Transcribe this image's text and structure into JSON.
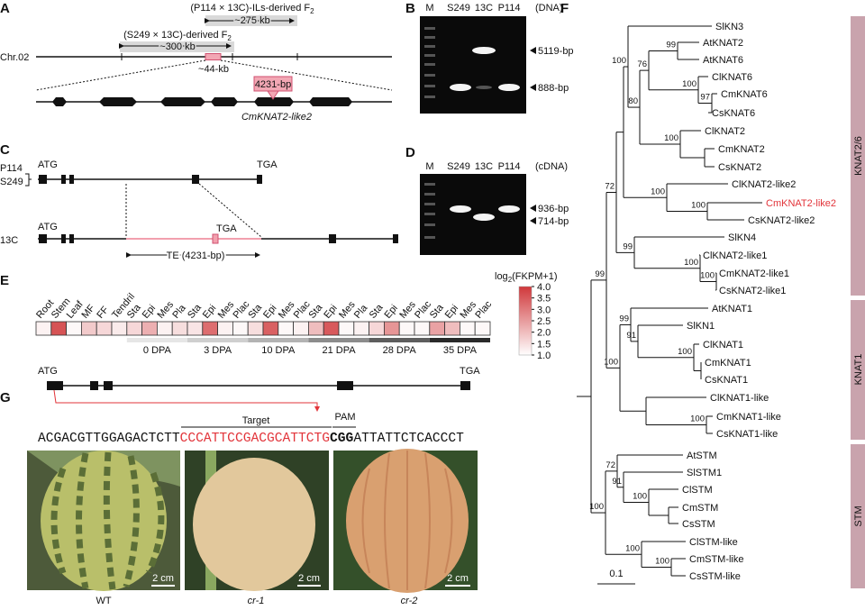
{
  "panels": {
    "A": {
      "label": "A",
      "il_label": {
        "text": "(P114 × 13C)-ILs-derived F",
        "sub": "2"
      },
      "il_size": "~275 kb",
      "f2_label": {
        "text": "(S249 × 13C)-derived F",
        "sub": "2"
      },
      "f2_size": "~300 kb",
      "chromosome": "Chr.02",
      "interval": "~44-kb",
      "insertion": "4231-bp",
      "gene": "CmKNAT2-like2"
    },
    "B": {
      "label": "B",
      "lanes": [
        "M",
        "S249",
        "13C",
        "P114"
      ],
      "template": "(DNA)",
      "bands": [
        "5119-bp",
        "888-bp"
      ]
    },
    "C": {
      "label": "C",
      "start": "ATG",
      "stop": "TGA",
      "lines_top": [
        "P114",
        "S249"
      ],
      "line_bottom": "13C",
      "start2": "ATG",
      "stop2": "TGA",
      "te": "TE (4231-bp)"
    },
    "D": {
      "label": "D",
      "lanes": [
        "M",
        "S249",
        "13C",
        "P114"
      ],
      "template": "(cDNA)",
      "bands": [
        "936-bp",
        "714-bp"
      ]
    },
    "E": {
      "label": "E",
      "tissues": [
        "Root",
        "Stem",
        "Leaf",
        "MF",
        "FF",
        "Tendril",
        "Sta",
        "Epi",
        "Mes",
        "Pla",
        "Sta",
        "Epi",
        "Mes",
        "Plac",
        "Sta",
        "Epi",
        "Mes",
        "Plac",
        "Sta",
        "Epi",
        "Mes",
        "Pla",
        "Sta",
        "Epi",
        "Mes",
        "Plac",
        "Sta",
        "Epi",
        "Mes",
        "Plac"
      ],
      "values": [
        1.2,
        3.6,
        1.1,
        1.8,
        1.6,
        1.3,
        1.6,
        2.2,
        1.2,
        1.5,
        1.4,
        3.2,
        1.2,
        1.1,
        1.5,
        3.4,
        1.1,
        1.2,
        2.0,
        3.5,
        1.1,
        1.2,
        1.6,
        2.6,
        1.1,
        1.1,
        2.4,
        2.0,
        1.1,
        1.1
      ],
      "stages": [
        "0 DPA",
        "3 DPA",
        "10 DPA",
        "21 DPA",
        "28 DPA",
        "35 DPA"
      ],
      "colorbar": {
        "title": "log",
        "title_sub": "2",
        "title_rest": "(FKPM+1)",
        "range": [
          1,
          4
        ],
        "low_color": "#ffffff",
        "high_color": "#d0383b",
        "ticks": [
          {
            "value": 4,
            "label": "4.0"
          },
          {
            "value": 3.5,
            "label": "3.5"
          },
          {
            "value": 3,
            "label": "3.0"
          },
          {
            "value": 2.5,
            "label": "2.5"
          },
          {
            "value": 2,
            "label": "2.0"
          },
          {
            "value": 1.5,
            "label": "1.5"
          },
          {
            "value": 1,
            "label": "1.0"
          }
        ]
      }
    },
    "F": {
      "label": "F",
      "taxa": [
        {
          "name": "SlKN3"
        },
        {
          "name": "AtKNAT2"
        },
        {
          "name": "AtKNAT6"
        },
        {
          "name": "ClKNAT6"
        },
        {
          "name": "CmKNAT6"
        },
        {
          "name": "CsKNAT6"
        },
        {
          "name": "ClKNAT2"
        },
        {
          "name": "CmKNAT2"
        },
        {
          "name": "CsKNAT2"
        },
        {
          "name": "ClKNAT2-like2"
        },
        {
          "name": "CmKNAT2-like2",
          "color": "#e2343a"
        },
        {
          "name": "CsKNAT2-like2"
        },
        {
          "name": "SlKN4"
        },
        {
          "name": "ClKNAT2-like1"
        },
        {
          "name": "CmKNAT2-like1"
        },
        {
          "name": "CsKNAT2-like1"
        },
        {
          "name": "AtKNAT1"
        },
        {
          "name": "SlKN1"
        },
        {
          "name": "ClKNAT1"
        },
        {
          "name": "CmKNAT1"
        },
        {
          "name": "CsKNAT1"
        },
        {
          "name": "ClKNAT1-like"
        },
        {
          "name": "CmKNAT1-like"
        },
        {
          "name": "CsKNAT1-like"
        },
        {
          "name": "AtSTM"
        },
        {
          "name": "SlSTM1"
        },
        {
          "name": "ClSTM"
        },
        {
          "name": "CmSTM"
        },
        {
          "name": "CsSTM"
        },
        {
          "name": "ClSTM-like"
        },
        {
          "name": "CmSTM-like"
        },
        {
          "name": "CsSTM-like"
        }
      ],
      "bootstraps": [
        99,
        72,
        100,
        80,
        76,
        99,
        100,
        97,
        100,
        100,
        100,
        99,
        100,
        100,
        100,
        99,
        91,
        100,
        100,
        100,
        72,
        91,
        100,
        100,
        100
      ],
      "clades": [
        "KNAT2/6",
        "KNAT1",
        "STM"
      ],
      "scale": 0.1
    },
    "G": {
      "label": "G",
      "start": "ATG",
      "stop": "TGA",
      "target": "Target",
      "pam": "PAM",
      "sequence": {
        "pre": "ACGACGTTGGAGACTCTT",
        "target": "CCCATTCCGACGCATTCTG",
        "pam": "CGG",
        "post": "ATTATTCTCACCCT"
      },
      "scale_bars": [
        "2 cm",
        "2 cm",
        "2 cm"
      ],
      "genotypes": [
        "WT",
        "cr-1",
        "cr-2"
      ]
    }
  }
}
